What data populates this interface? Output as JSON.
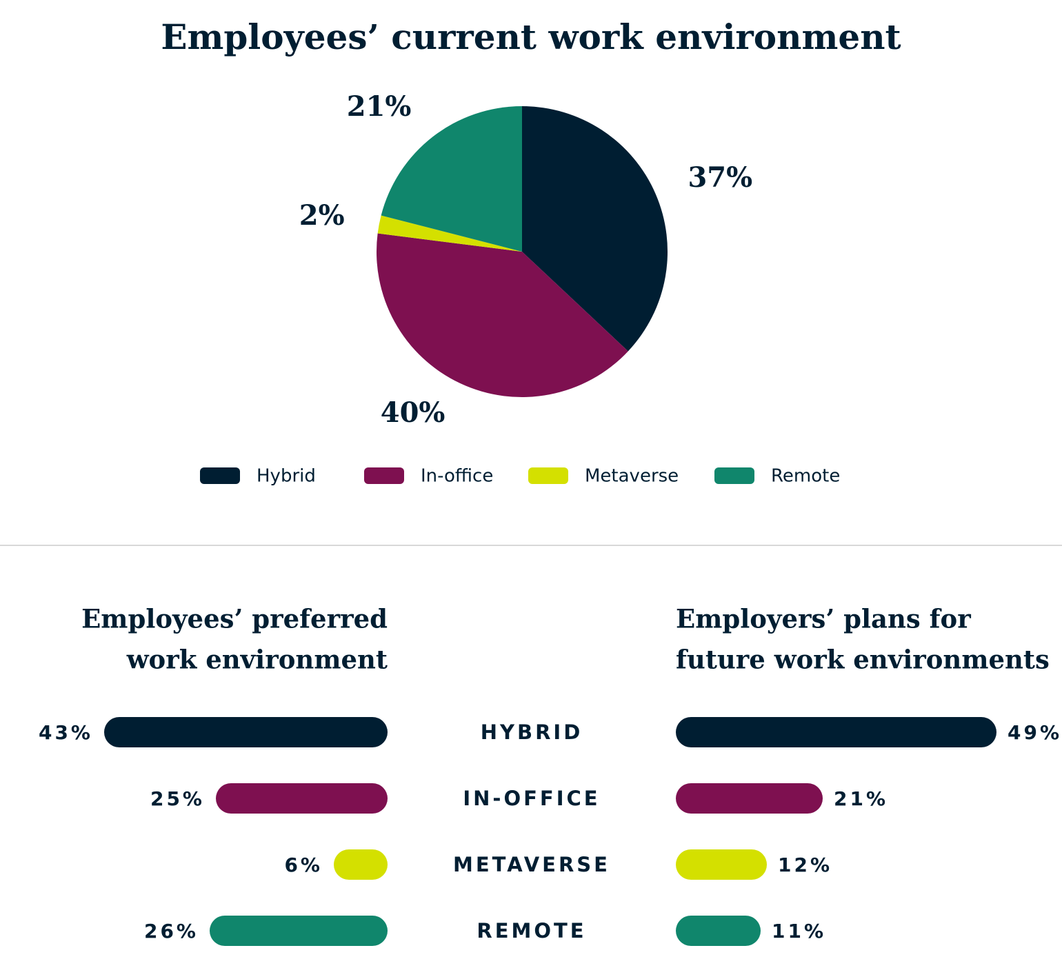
{
  "chart_data": [
    {
      "type": "pie",
      "title": "Employees’ current work environment",
      "categories": [
        "Hybrid",
        "In-office",
        "Metaverse",
        "Remote"
      ],
      "values": [
        37,
        40,
        2,
        21
      ],
      "value_labels": [
        "37%",
        "40%",
        "2%",
        "21%"
      ],
      "colors": [
        "#001e32",
        "#7e1050",
        "#d4e000",
        "#10866c"
      ]
    },
    {
      "type": "bar",
      "orientation": "left",
      "title": [
        "Employees’ preferred",
        "work environment"
      ],
      "categories": [
        "HYBRID",
        "IN-OFFICE",
        "METAVERSE",
        "REMOTE"
      ],
      "values": [
        43,
        25,
        6,
        26
      ],
      "value_labels": [
        "43%",
        "25%",
        "6%",
        "26%"
      ],
      "colors": [
        "#001e32",
        "#7e1050",
        "#d4e000",
        "#10866c"
      ]
    },
    {
      "type": "bar",
      "orientation": "right",
      "title": [
        "Employers’ plans for",
        "future work environments"
      ],
      "values": [
        49,
        21,
        12,
        11
      ],
      "value_labels": [
        "49%",
        "21%",
        "12%",
        "11%"
      ],
      "colors": [
        "#001e32",
        "#7e1050",
        "#d4e000",
        "#10866c"
      ]
    }
  ]
}
